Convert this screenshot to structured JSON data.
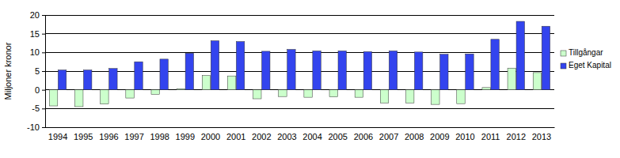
{
  "chart_data": {
    "type": "bar",
    "y_label": "Miljoner kronor",
    "categories": [
      "1994",
      "1995",
      "1996",
      "1997",
      "1998",
      "1999",
      "2000",
      "2001",
      "2002",
      "2003",
      "2004",
      "2005",
      "2006",
      "2007",
      "2008",
      "2009",
      "2010",
      "2011",
      "2012",
      "2013"
    ],
    "series": [
      {
        "name": "Tillgångar",
        "color": "#ccffcc",
        "values": [
          -4.3,
          -4.5,
          -3.8,
          -2.2,
          -1.2,
          0.3,
          3.8,
          3.7,
          -2.4,
          -1.8,
          -2.0,
          -1.9,
          -2.0,
          -3.5,
          -3.5,
          -3.9,
          -3.7,
          0.6,
          5.8,
          4.6
        ]
      },
      {
        "name": "Eget Kapital",
        "color": "#3344ee",
        "values": [
          5.3,
          5.3,
          5.7,
          7.5,
          8.2,
          9.8,
          13.1,
          12.9,
          10.3,
          10.8,
          10.4,
          10.4,
          10.2,
          10.4,
          10.1,
          9.5,
          9.6,
          13.5,
          18.3,
          17.0
        ]
      }
    ],
    "ylim": [
      -10,
      20
    ],
    "yticks": [
      -10,
      -5,
      0,
      5,
      10,
      15,
      20
    ],
    "grid": true,
    "legend": "right"
  }
}
